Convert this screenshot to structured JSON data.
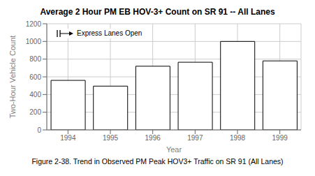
{
  "chart_data": {
    "type": "bar",
    "title": "Average 2 Hour PM EB HOV-3+ Count on SR 91 -- All Lanes",
    "caption": "Figure 2-38. Trend in Observed PM Peak HOV3+ Traffic on SR 91 (All Lanes)",
    "xlabel": "Year",
    "ylabel": "Two-Hour Vehicle Count",
    "categories": [
      "1994",
      "1995",
      "1996",
      "1997",
      "1998",
      "1999"
    ],
    "values": [
      560,
      495,
      720,
      765,
      1000,
      780
    ],
    "color": "#ffffff",
    "ylim": [
      0,
      1200
    ],
    "yticks": [
      0,
      200,
      400,
      600,
      800,
      1000,
      1200
    ],
    "grid": true,
    "annotations": [
      "Express Lanes Open"
    ]
  }
}
